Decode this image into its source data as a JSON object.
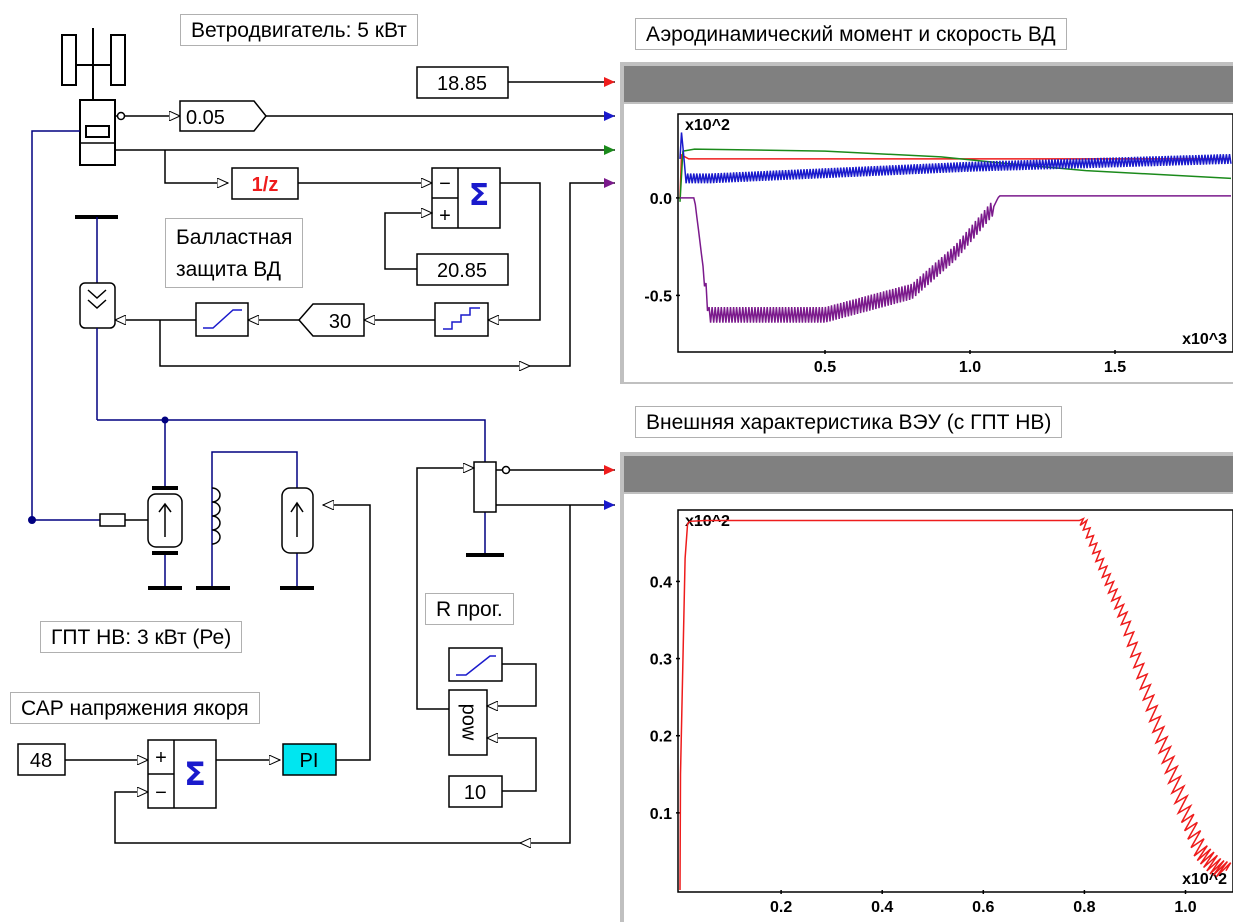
{
  "labels": {
    "wind_turbine": "Ветродвигатель: 5 кВт",
    "ballast_line1": "Балластная",
    "ballast_line2": "защита ВД",
    "dc_gen": "ГПТ НВ: 3 кВт (Ре)",
    "sar": "САР напряжения якоря",
    "r_prog": "R прог."
  },
  "blocks": {
    "const_speed": "18.85",
    "gain": "0.05",
    "delay": "1/z",
    "sum_symbol": "Σ",
    "sum_minus": "−",
    "sum_plus": "+",
    "const_ref": "20.85",
    "gain_30": "30",
    "const_48": "48",
    "pi": "PI",
    "pow": "pow",
    "const_10": "10"
  },
  "colors": {
    "red": "#ee1c1c",
    "blue": "#1a1acc",
    "green": "#1b8a1b",
    "purple": "#7b1a8c",
    "cyan": "#00e6f0",
    "wire": "#000080",
    "scope_bar": "#808080"
  },
  "chart_data": [
    {
      "type": "line",
      "title": "Аэродинамический момент и скорость ВД",
      "y_multiplier": "x10^2",
      "x_multiplier": "x10^3",
      "xticks": [
        "0.5",
        "1.0",
        "1.5"
      ],
      "yticks": [
        "0.0",
        "-0.5"
      ],
      "xlim": [
        0,
        1.9
      ],
      "ylim": [
        -0.78,
        0.42
      ],
      "series": [
        {
          "color": "red",
          "x": [
            0,
            0.005,
            0.03,
            1.0,
            1.9
          ],
          "y": [
            0,
            0.22,
            0.2,
            0.2,
            0.2
          ]
        },
        {
          "color": "green",
          "x": [
            0,
            0.01,
            0.05,
            0.5,
            0.9,
            1.1,
            1.4,
            1.9
          ],
          "y": [
            -0.02,
            0.24,
            0.25,
            0.24,
            0.21,
            0.18,
            0.14,
            0.1
          ]
        },
        {
          "color": "blue",
          "x": [
            0,
            0.005,
            0.02,
            0.1,
            1.0,
            1.9
          ],
          "y": [
            0.2,
            0.34,
            0.1,
            0.1,
            0.16,
            0.2
          ],
          "oscillation": 0.05
        },
        {
          "color": "purple",
          "x": [
            0,
            0.05,
            0.1,
            0.5,
            0.8,
            0.95,
            1.08,
            1.1,
            1.9
          ],
          "y": [
            0,
            0,
            -0.6,
            -0.6,
            -0.48,
            -0.28,
            -0.05,
            0.01,
            0.01
          ],
          "oscillation": 0.08
        }
      ]
    },
    {
      "type": "line",
      "title": "Внешняя характеристика ВЭУ (с ГПТ НВ)",
      "y_multiplier": "x10^2",
      "x_multiplier": "x10^2",
      "xticks": [
        "0.2",
        "0.4",
        "0.6",
        "0.8",
        "1.0"
      ],
      "yticks": [
        "0.4",
        "0.3",
        "0.2",
        "0.1"
      ],
      "xlim": [
        0,
        1.09
      ],
      "ylim": [
        0,
        0.49
      ],
      "series": [
        {
          "color": "red",
          "x": [
            0,
            0.001,
            0.01,
            0.015,
            0.02,
            0.05,
            0.1,
            0.3,
            0.6,
            0.79,
            0.8,
            0.88,
            0.95,
            1.0,
            1.03,
            1.06,
            1.08
          ],
          "y": [
            0,
            0.15,
            0.43,
            0.475,
            0.478,
            0.479,
            0.479,
            0.479,
            0.479,
            0.479,
            0.475,
            0.35,
            0.2,
            0.1,
            0.05,
            0.03,
            0.025
          ]
        }
      ]
    }
  ]
}
